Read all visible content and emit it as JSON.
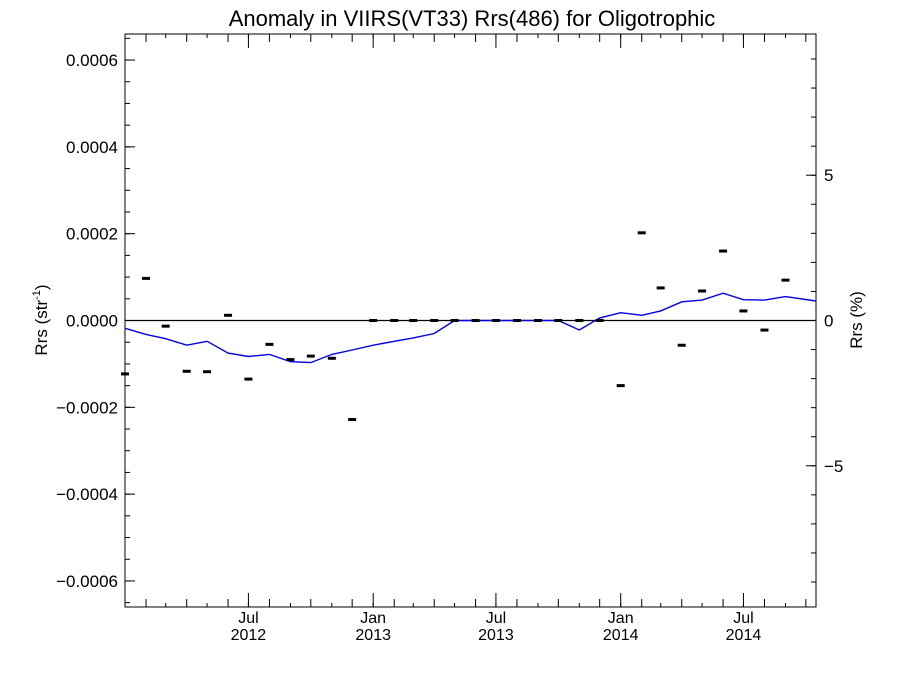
{
  "chart_data": {
    "type": "line",
    "title": "Anomaly in VIIRS(VT33) Rrs(486) for Oligotrophic",
    "ylabel_base": "Rrs (str",
    "ylabel_sup": "-1",
    "ylabel_end": ")",
    "y2label": "Rrs (%)",
    "ylim": [
      -0.00066,
      0.00066
    ],
    "y2lim": [
      -9.86,
      9.86
    ],
    "yticks": [
      {
        "value": -0.0006,
        "label": "−0.0006"
      },
      {
        "value": -0.0004,
        "label": "−0.0004"
      },
      {
        "value": -0.0002,
        "label": "−0.0002"
      },
      {
        "value": 0.0,
        "label": "0.0000"
      },
      {
        "value": 0.0002,
        "label": "0.0002"
      },
      {
        "value": 0.0004,
        "label": "0.0004"
      },
      {
        "value": 0.0006,
        "label": "0.0006"
      }
    ],
    "y2ticks": [
      {
        "value": -5,
        "label": "−5"
      },
      {
        "value": 0,
        "label": "0"
      },
      {
        "value": 5,
        "label": "5"
      }
    ],
    "xlim": [
      "2012-01-01",
      "2014-10-16"
    ],
    "xticks": [
      {
        "date": "2012-07-01",
        "month": "Jul",
        "year": "2012"
      },
      {
        "date": "2013-01-01",
        "month": "Jan",
        "year": "2013"
      },
      {
        "date": "2013-07-01",
        "month": "Jul",
        "year": "2013"
      },
      {
        "date": "2014-01-01",
        "month": "Jan",
        "year": "2014"
      },
      {
        "date": "2014-07-01",
        "month": "Jul",
        "year": "2014"
      }
    ],
    "series": [
      {
        "kind": "line",
        "color": "#0000ee",
        "points": [
          [
            "2012-01-01",
            -1.8e-05
          ],
          [
            "2012-02-01",
            -3.2e-05
          ],
          [
            "2012-03-01",
            -4.2e-05
          ],
          [
            "2012-04-01",
            -5.7e-05
          ],
          [
            "2012-05-01",
            -4.8e-05
          ],
          [
            "2012-06-01",
            -7.5e-05
          ],
          [
            "2012-07-01",
            -8.3e-05
          ],
          [
            "2012-08-01",
            -7.8e-05
          ],
          [
            "2012-09-01",
            -9.5e-05
          ],
          [
            "2012-10-01",
            -9.7e-05
          ],
          [
            "2012-11-01",
            -7.8e-05
          ],
          [
            "2012-12-01",
            -6.8e-05
          ],
          [
            "2013-01-01",
            -5.7e-05
          ],
          [
            "2013-02-01",
            -4.8e-05
          ],
          [
            "2013-03-01",
            -4e-05
          ],
          [
            "2013-04-01",
            -3e-05
          ],
          [
            "2013-05-01",
            0.0
          ],
          [
            "2013-06-01",
            0.0
          ],
          [
            "2013-07-01",
            0.0
          ],
          [
            "2013-08-01",
            0.0
          ],
          [
            "2013-09-01",
            0.0
          ],
          [
            "2013-10-01",
            0.0
          ],
          [
            "2013-11-01",
            -2.2e-05
          ],
          [
            "2013-12-01",
            6e-06
          ],
          [
            "2014-01-01",
            1.8e-05
          ],
          [
            "2014-02-01",
            1.2e-05
          ],
          [
            "2014-03-01",
            2.2e-05
          ],
          [
            "2014-04-01",
            4.3e-05
          ],
          [
            "2014-05-01",
            4.7e-05
          ],
          [
            "2014-06-01",
            6.3e-05
          ],
          [
            "2014-07-01",
            4.8e-05
          ],
          [
            "2014-08-01",
            4.7e-05
          ],
          [
            "2014-09-01",
            5.5e-05
          ],
          [
            "2014-10-16",
            4.5e-05
          ]
        ]
      },
      {
        "kind": "marker",
        "color": "#000000",
        "points": [
          [
            "2012-01-01",
            -0.000123
          ],
          [
            "2012-02-01",
            9.7e-05
          ],
          [
            "2012-03-01",
            -1.3e-05
          ],
          [
            "2012-04-01",
            -0.000117
          ],
          [
            "2012-05-01",
            -0.000118
          ],
          [
            "2012-06-01",
            1.2e-05
          ],
          [
            "2012-07-01",
            -0.000135
          ],
          [
            "2012-08-01",
            -5.5e-05
          ],
          [
            "2012-09-01",
            -9e-05
          ],
          [
            "2012-10-01",
            -8.2e-05
          ],
          [
            "2012-11-01",
            -8.7e-05
          ],
          [
            "2012-12-01",
            -0.000228
          ],
          [
            "2013-01-01",
            0.0
          ],
          [
            "2013-02-01",
            0.0
          ],
          [
            "2013-03-01",
            0.0
          ],
          [
            "2013-04-01",
            0.0
          ],
          [
            "2013-05-01",
            0.0
          ],
          [
            "2013-06-01",
            0.0
          ],
          [
            "2013-07-01",
            0.0
          ],
          [
            "2013-08-01",
            0.0
          ],
          [
            "2013-09-01",
            0.0
          ],
          [
            "2013-10-01",
            0.0
          ],
          [
            "2013-11-01",
            0.0
          ],
          [
            "2013-12-01",
            0.0
          ],
          [
            "2014-01-01",
            -0.00015
          ],
          [
            "2014-02-01",
            0.000202
          ],
          [
            "2014-03-01",
            7.5e-05
          ],
          [
            "2014-04-01",
            -5.7e-05
          ],
          [
            "2014-05-01",
            6.8e-05
          ],
          [
            "2014-06-01",
            0.00016
          ],
          [
            "2014-07-01",
            2.2e-05
          ],
          [
            "2014-08-01",
            -2.2e-05
          ],
          [
            "2014-09-01",
            9.3e-05
          ]
        ]
      }
    ],
    "zero_line": true,
    "grid": false
  }
}
